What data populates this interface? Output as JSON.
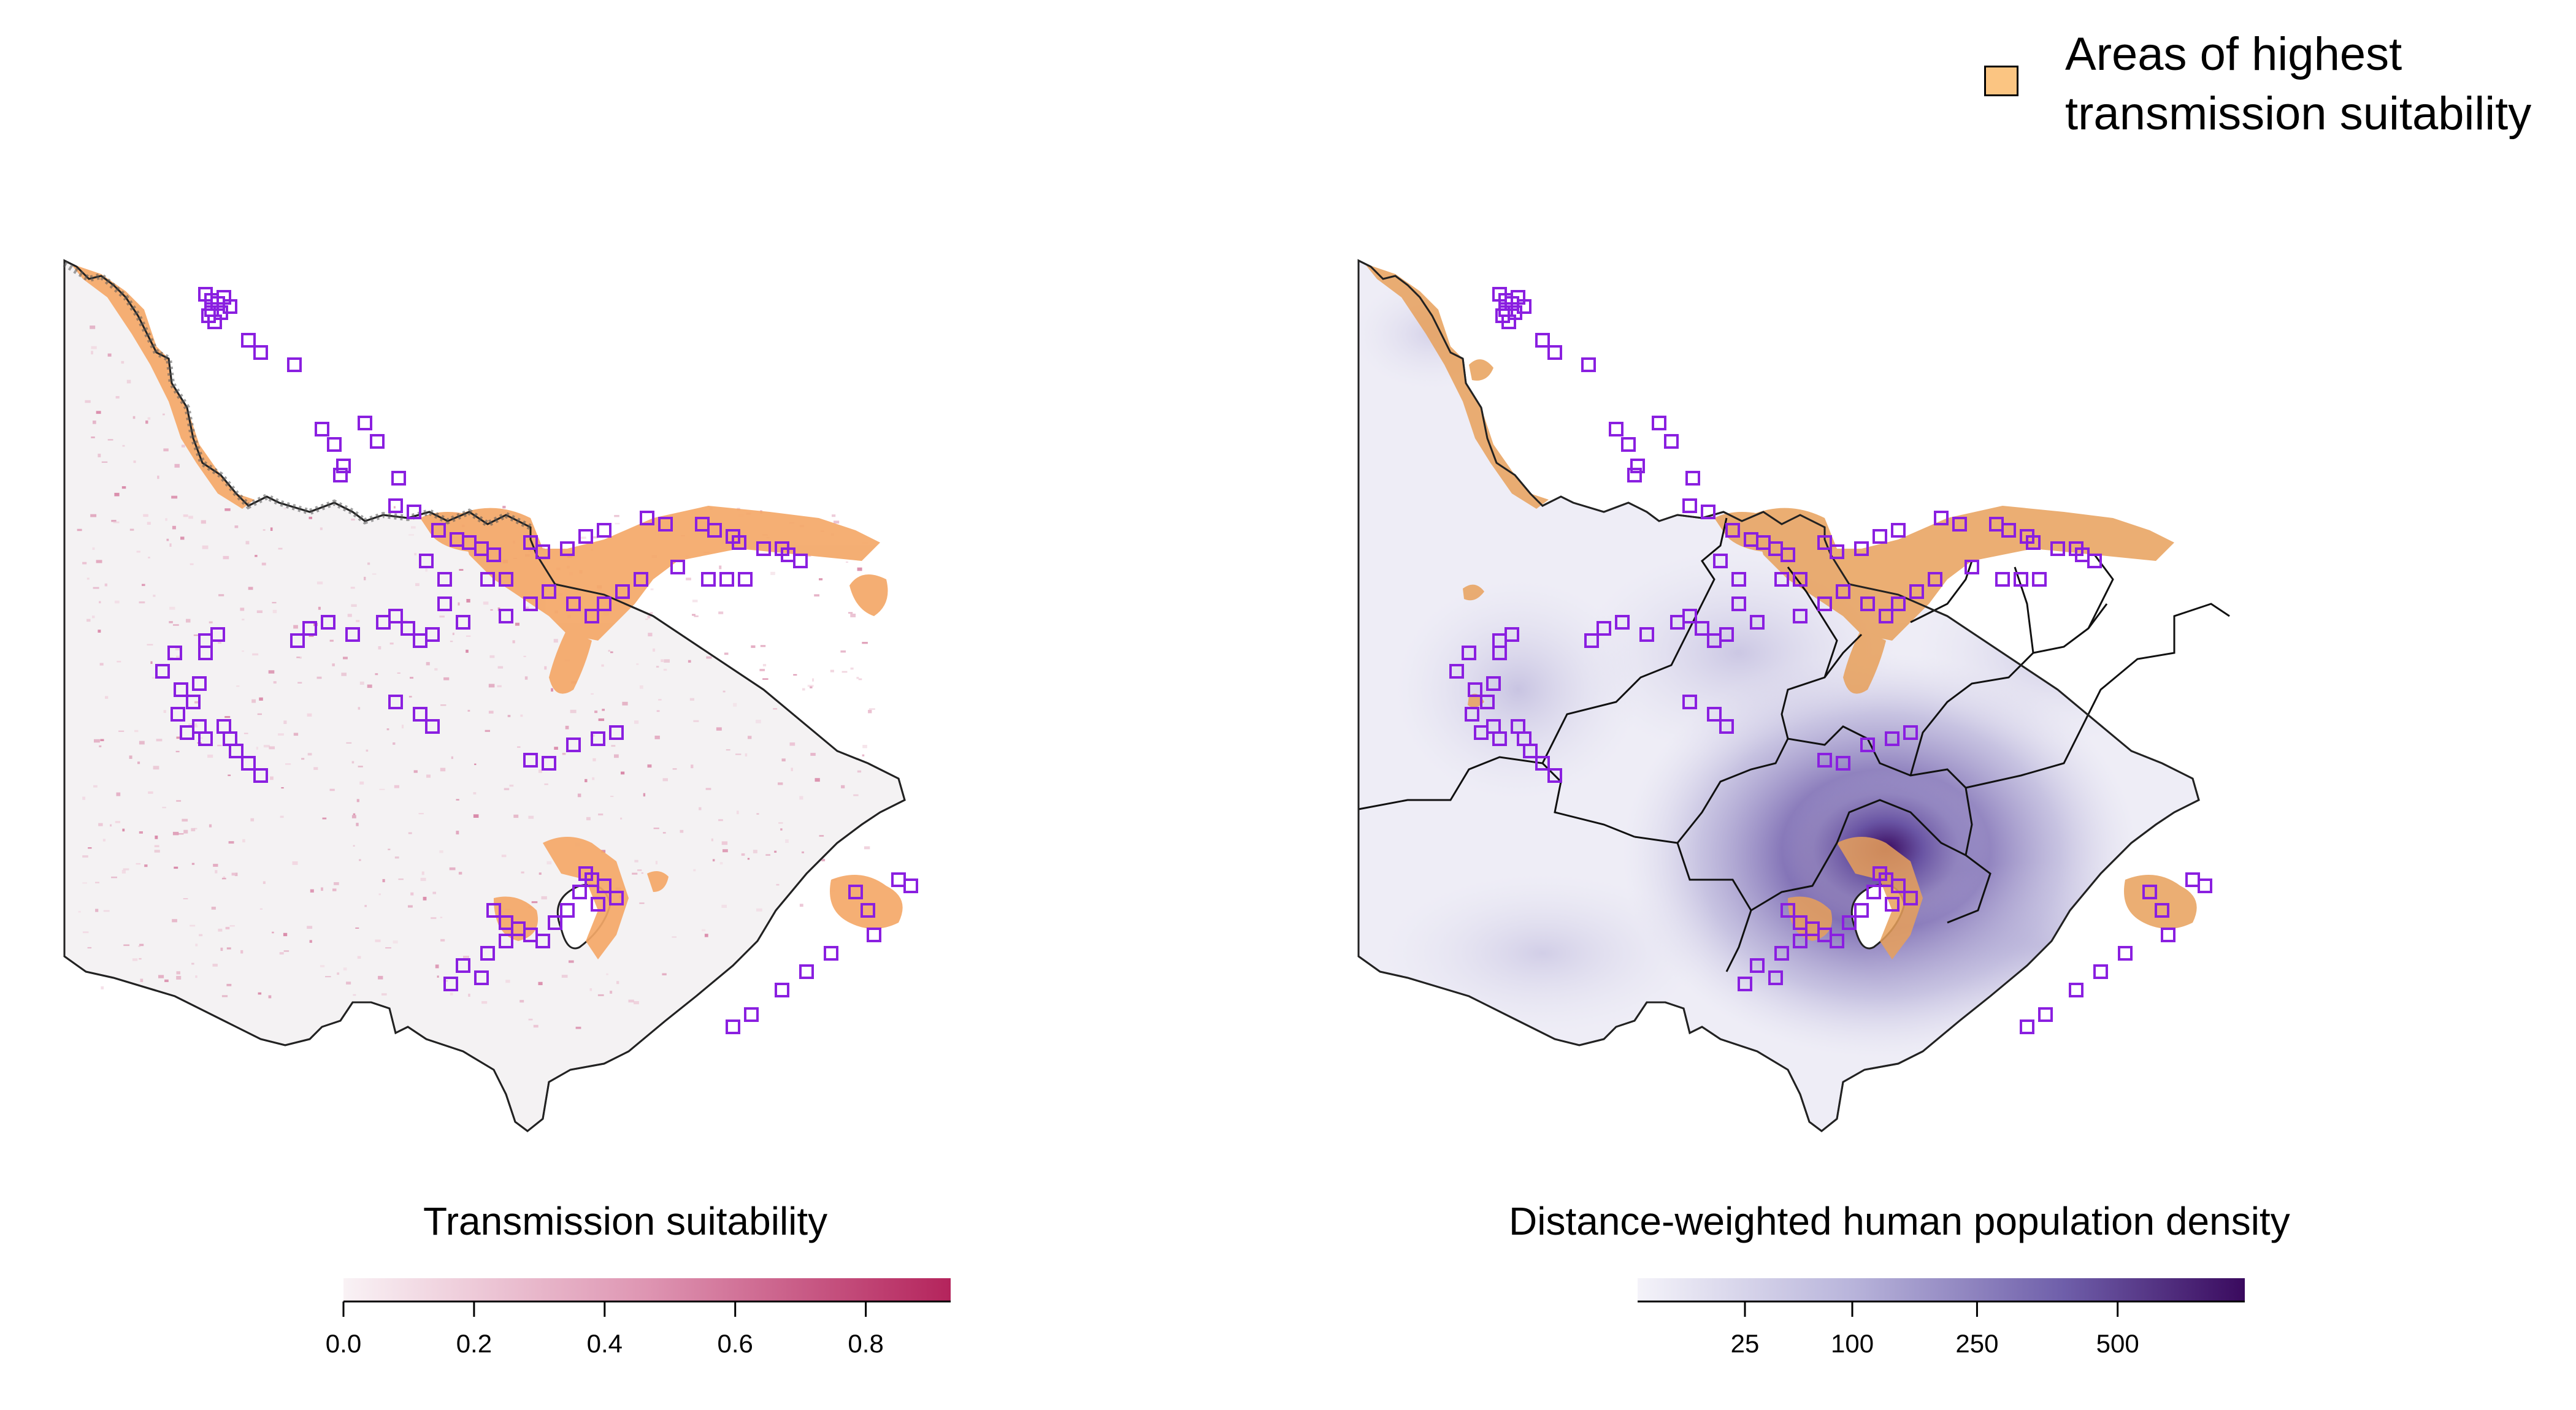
{
  "legend_highlight": {
    "label_line1": "Areas of highest",
    "label_line2": "transmission suitability",
    "color": "#FBC582"
  },
  "left_map": {
    "colorbar_title": "Transmission suitability",
    "ticks": [
      "0.0",
      "0.2",
      "0.4",
      "0.6",
      "0.8"
    ],
    "tick_values": [
      0.0,
      0.2,
      0.4,
      0.6,
      0.8
    ],
    "range": [
      0.0,
      0.93
    ],
    "color_low": "#F7F0F3",
    "color_high": "#B4245C"
  },
  "right_map": {
    "colorbar_title": "Distance-weighted human population density",
    "ticks": [
      "25",
      "100",
      "250",
      "500"
    ],
    "tick_values": [
      25,
      100,
      250,
      500
    ],
    "scale": "sqrt",
    "range": [
      0,
      800
    ],
    "color_low": "#F4F3F9",
    "color_high": "#3A0A5E"
  },
  "marker_color": "#8A1FE0",
  "outline_color": "#000000"
}
